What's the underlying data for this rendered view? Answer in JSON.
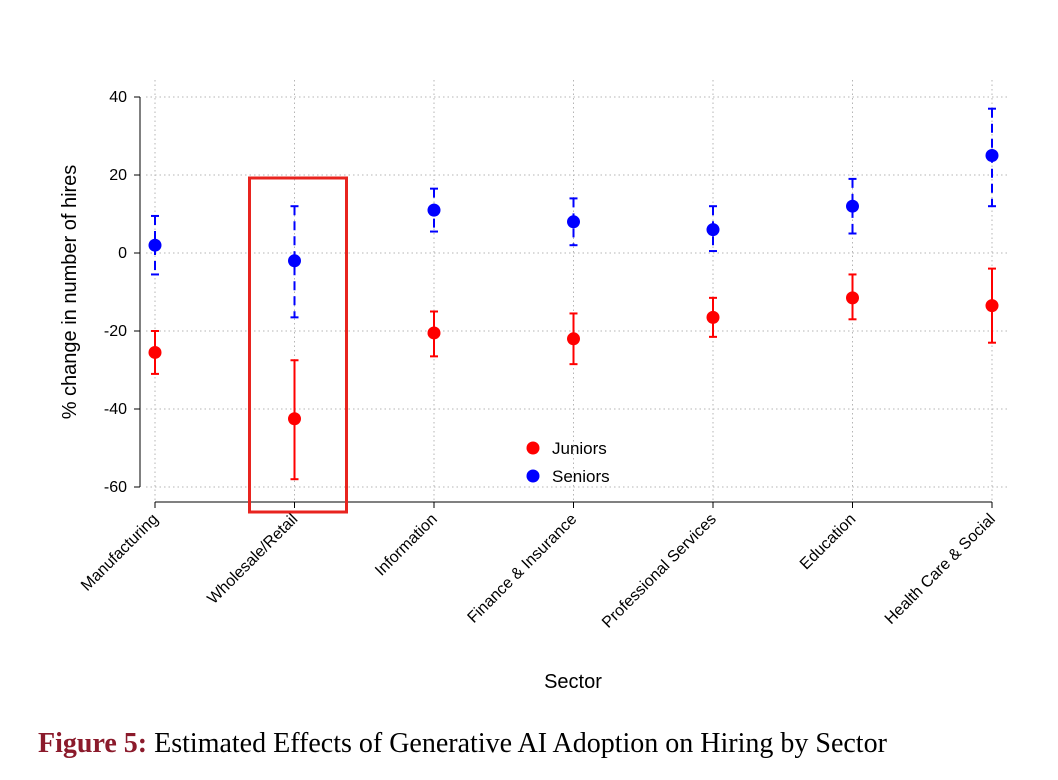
{
  "chart_data": {
    "type": "scatter",
    "categories": [
      "Manufacturing",
      "Wholesale/Retail",
      "Information",
      "Finance & Insurance",
      "Professional Services",
      "Education",
      "Health Care & Social"
    ],
    "xlabel": "Sector",
    "ylabel": "% change in number of hires",
    "ylim": [
      -64,
      42
    ],
    "yticks": [
      40,
      20,
      0,
      -20,
      -40,
      -60
    ],
    "grid": true,
    "legend_placement": "bottom-center",
    "highlighted_category": "Wholesale/Retail",
    "series": [
      {
        "name": "Juniors",
        "color": "#ff0000",
        "line_style": "solid",
        "values": [
          -25.5,
          -42.5,
          -20.5,
          -22,
          -16.5,
          -11.5,
          -13.5
        ],
        "ci_low": [
          -31,
          -58,
          -26.5,
          -28.5,
          -21.5,
          -17,
          -23
        ],
        "ci_high": [
          -20,
          -27.5,
          -15,
          -15.5,
          -11.5,
          -5.5,
          -4
        ]
      },
      {
        "name": "Seniors",
        "color": "#0000ff",
        "line_style": "dashed",
        "values": [
          2,
          -2,
          11,
          8,
          6,
          12,
          25
        ],
        "ci_low": [
          -5.5,
          -16.5,
          5.5,
          2,
          0.5,
          5,
          12
        ],
        "ci_high": [
          9.5,
          12,
          16.5,
          14,
          12,
          19,
          37
        ]
      }
    ]
  },
  "caption": {
    "label": "Figure 5:",
    "text": "Estimated Effects of Generative AI Adoption on Hiring by Sector"
  }
}
